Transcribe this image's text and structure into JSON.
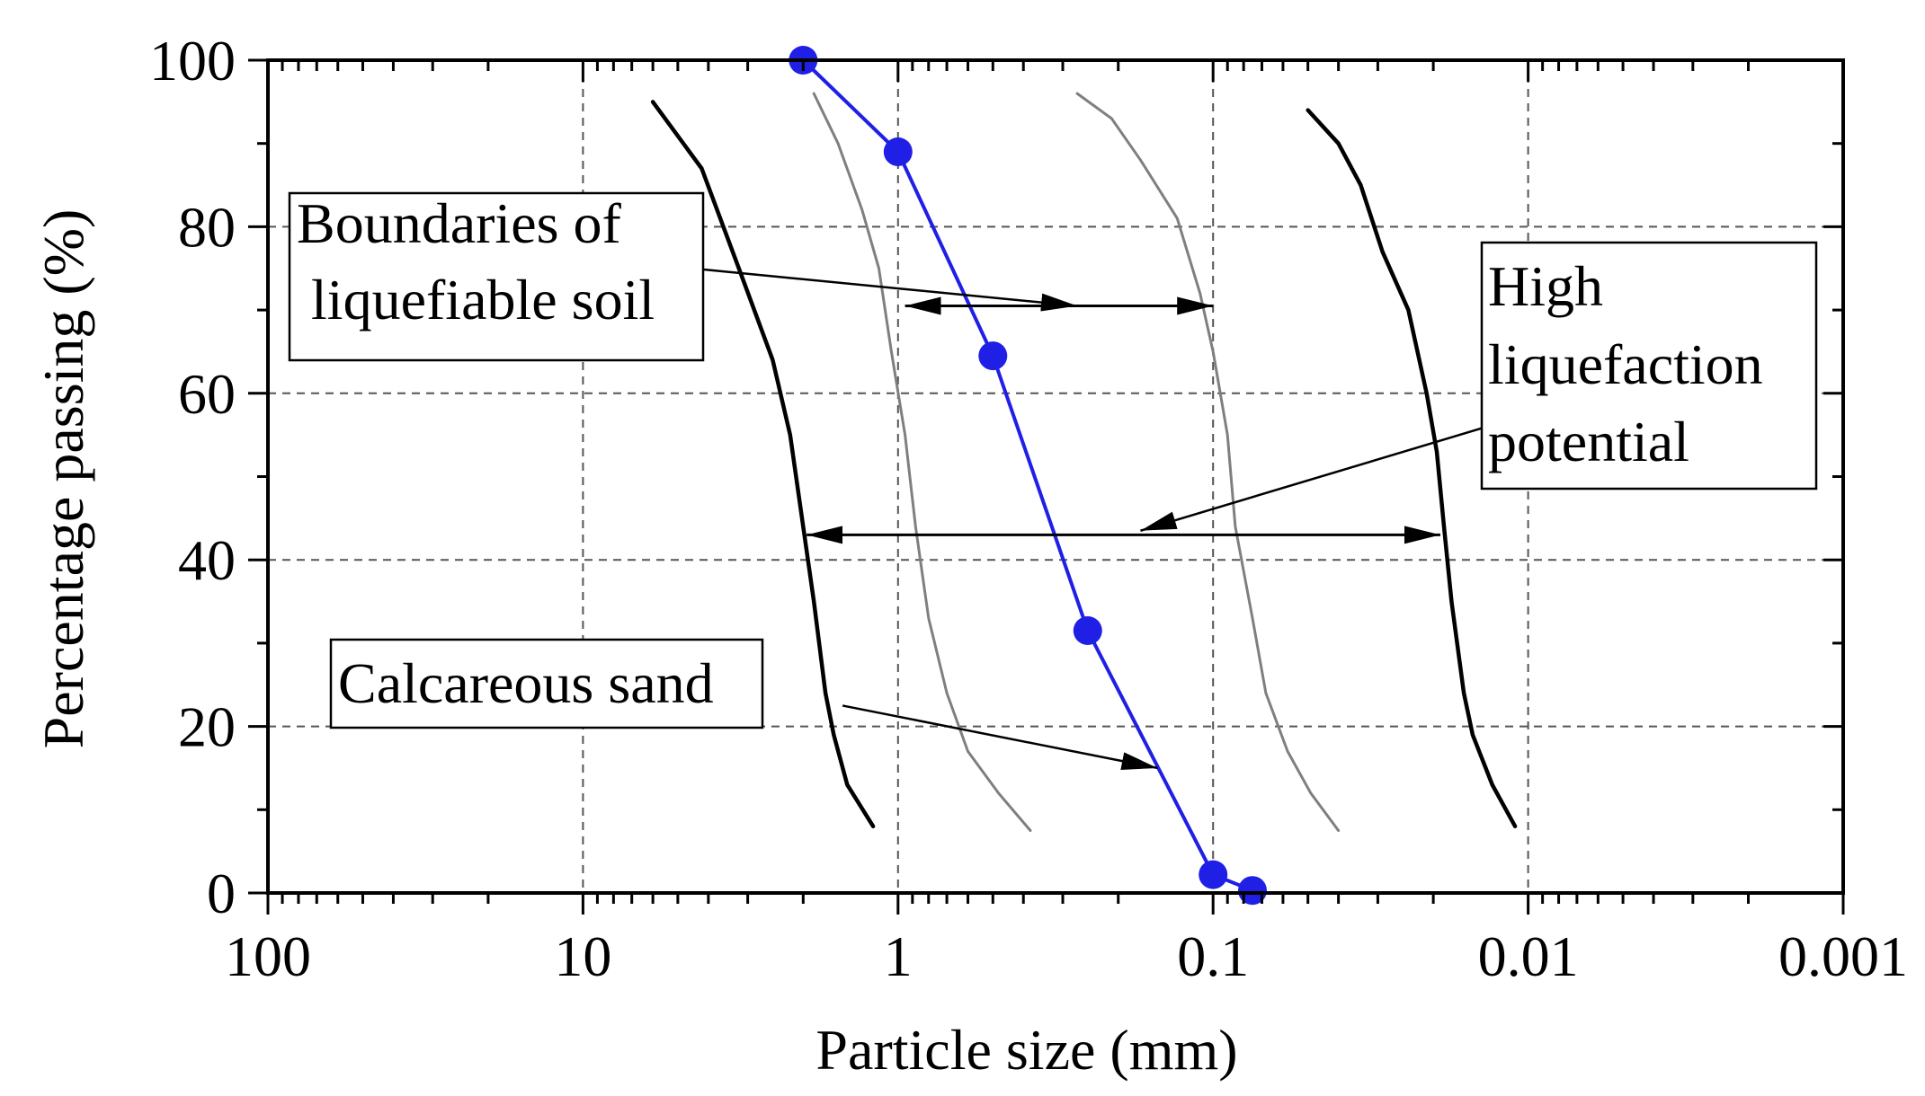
{
  "chart_data": {
    "type": "line",
    "xlabel": "Particle size (mm)",
    "ylabel": "Percentage passing (%)",
    "x_scale": "log",
    "x_reversed": true,
    "xlim": [
      100,
      0.001
    ],
    "ylim": [
      0,
      100
    ],
    "grid": true,
    "x_ticks": [
      {
        "value": 100,
        "label": "100"
      },
      {
        "value": 10,
        "label": "10"
      },
      {
        "value": 1,
        "label": "1"
      },
      {
        "value": 0.1,
        "label": "0.1"
      },
      {
        "value": 0.01,
        "label": "0.01"
      },
      {
        "value": 0.001,
        "label": "0.001"
      }
    ],
    "y_ticks": [
      {
        "value": 0,
        "label": "0"
      },
      {
        "value": 20,
        "label": "20"
      },
      {
        "value": 40,
        "label": "40"
      },
      {
        "value": 60,
        "label": "60"
      },
      {
        "value": 80,
        "label": "80"
      },
      {
        "value": 100,
        "label": "100"
      }
    ],
    "colors": {
      "sand": "#1f1fe6",
      "high": "#000000",
      "boundary": "#7f7f7f",
      "grid": "#555555"
    },
    "series": [
      {
        "name": "Calcareous sand",
        "style": "markers",
        "points": [
          [
            2.0,
            100
          ],
          [
            1.0,
            89
          ],
          [
            0.5,
            64.5
          ],
          [
            0.25,
            31.5
          ],
          [
            0.1,
            2.2
          ],
          [
            0.075,
            0.3
          ]
        ]
      },
      {
        "name": "High liquefaction potential (coarse)",
        "style": "high",
        "points": [
          [
            6.0,
            95
          ],
          [
            4.2,
            87
          ],
          [
            3.2,
            75
          ],
          [
            2.5,
            64
          ],
          [
            2.2,
            55
          ],
          [
            2.0,
            44
          ],
          [
            1.85,
            35
          ],
          [
            1.7,
            24
          ],
          [
            1.6,
            19
          ],
          [
            1.45,
            13
          ],
          [
            1.2,
            8
          ]
        ]
      },
      {
        "name": "High liquefaction potential (fine)",
        "style": "high",
        "points": [
          [
            0.05,
            94
          ],
          [
            0.04,
            90
          ],
          [
            0.034,
            85
          ],
          [
            0.029,
            77
          ],
          [
            0.024,
            70
          ],
          [
            0.021,
            60
          ],
          [
            0.0195,
            53
          ],
          [
            0.0185,
            44
          ],
          [
            0.0175,
            35
          ],
          [
            0.016,
            24
          ],
          [
            0.015,
            19
          ],
          [
            0.013,
            13
          ],
          [
            0.011,
            8
          ]
        ]
      },
      {
        "name": "Boundaries of liquefiable soil (coarse)",
        "style": "boundary",
        "points": [
          [
            1.85,
            96
          ],
          [
            1.55,
            90
          ],
          [
            1.3,
            82
          ],
          [
            1.15,
            75
          ],
          [
            1.05,
            65
          ],
          [
            0.95,
            55
          ],
          [
            0.88,
            44
          ],
          [
            0.8,
            33
          ],
          [
            0.7,
            24
          ],
          [
            0.6,
            17
          ],
          [
            0.48,
            12
          ],
          [
            0.38,
            7.5
          ]
        ]
      },
      {
        "name": "Boundaries of liquefiable soil (fine)",
        "style": "boundary",
        "points": [
          [
            0.27,
            96
          ],
          [
            0.21,
            93
          ],
          [
            0.17,
            88
          ],
          [
            0.13,
            81
          ],
          [
            0.11,
            72
          ],
          [
            0.1,
            65
          ],
          [
            0.09,
            55
          ],
          [
            0.085,
            44
          ],
          [
            0.075,
            33
          ],
          [
            0.068,
            24
          ],
          [
            0.058,
            17
          ],
          [
            0.049,
            12
          ],
          [
            0.04,
            7.5
          ]
        ]
      }
    ],
    "annotations": [
      {
        "id": "boundaries",
        "lines": [
          "Boundaries of",
          " liquefiable soil"
        ],
        "pointer_from": [
          4.5,
          75
        ],
        "pointer_to": [
          0.27,
          70.5
        ],
        "span": [
          0.95,
          0.1
        ],
        "span_y": 70.5
      },
      {
        "id": "high",
        "lines": [
          "High",
          "liquefaction",
          "potential"
        ],
        "pointer_from": [
          0.006,
          60
        ],
        "pointer_to": [
          0.17,
          43.5
        ],
        "span": [
          1.95,
          0.019
        ],
        "span_y": 43
      },
      {
        "id": "sand",
        "lines": [
          "Calcareous sand"
        ],
        "pointer_from": [
          1.5,
          22.5
        ],
        "pointer_to": [
          0.15,
          15
        ],
        "span": null,
        "span_y": null
      }
    ]
  }
}
